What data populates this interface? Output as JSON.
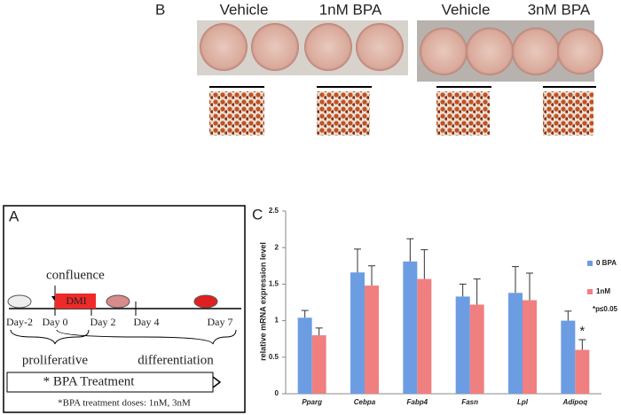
{
  "panel_b": {
    "label": "B",
    "columns": [
      "Vehicle",
      "1nM BPA",
      "Vehicle",
      "3nM BPA"
    ]
  },
  "panel_a": {
    "label": "A",
    "confluence": "confluence",
    "dmi": "DMI",
    "days": [
      "Day-2",
      "Day 0",
      "Day 2",
      "Day 4",
      "Day 7"
    ],
    "phases": [
      "proliferative",
      "differentiation"
    ],
    "treatment": "* BPA Treatment",
    "doses": "*BPA treatment doses: 1nM, 3nM"
  },
  "chart_data": {
    "type": "bar",
    "panel_label": "C",
    "y_label": "relative mRNA expression level",
    "categories": [
      "Pparg",
      "Cebpa",
      "Fabp4",
      "Fasn",
      "Lpl",
      "Adipoq"
    ],
    "series": [
      {
        "name": "0 BPA",
        "color": "#6c9de3",
        "values": [
          1.04,
          1.66,
          1.81,
          1.33,
          1.38,
          1.0
        ],
        "errors": [
          0.1,
          0.32,
          0.31,
          0.17,
          0.36,
          0.13
        ]
      },
      {
        "name": "1nM",
        "color": "#f07f80",
        "values": [
          0.8,
          1.48,
          1.57,
          1.22,
          1.28,
          0.6
        ],
        "errors": [
          0.1,
          0.27,
          0.4,
          0.35,
          0.37,
          0.14
        ]
      }
    ],
    "ylim": [
      0,
      2.5
    ],
    "yticks": [
      0,
      0.5,
      1,
      1.5,
      2,
      2.5
    ],
    "significance": "*",
    "note": "*p≤0.05"
  }
}
